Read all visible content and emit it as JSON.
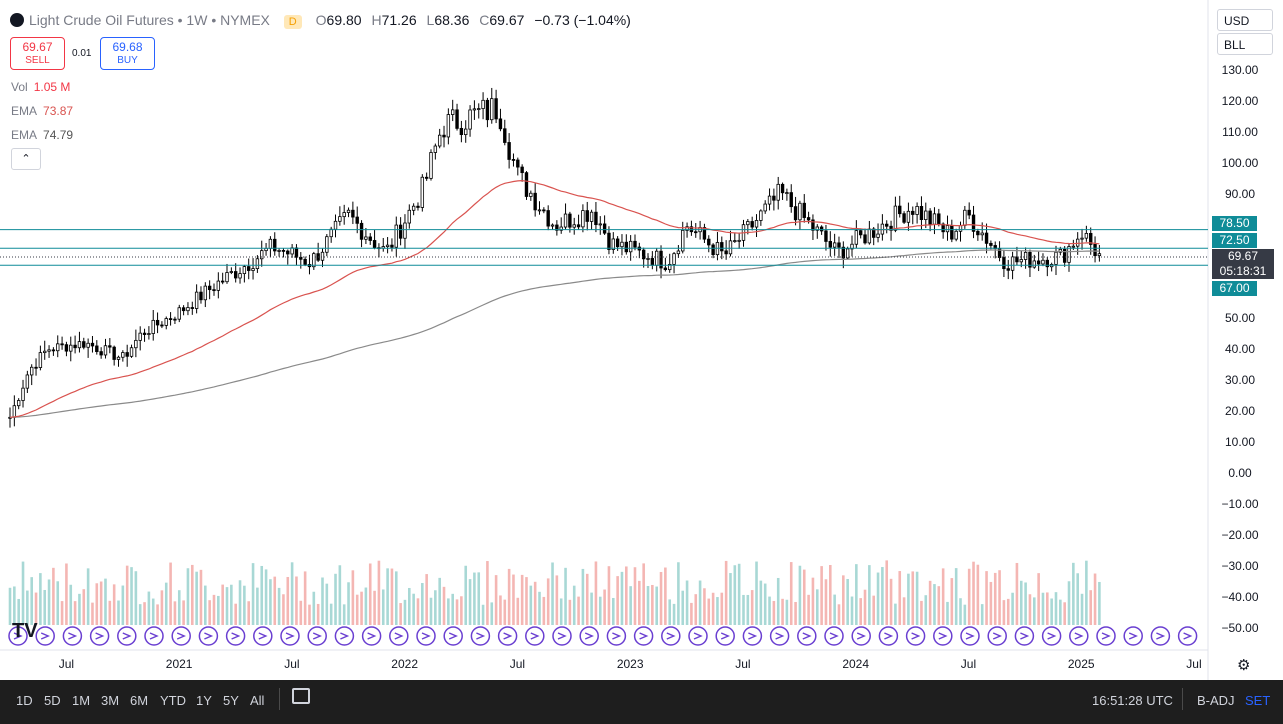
{
  "header": {
    "title": "Light Crude Oil Futures",
    "timeframe": "1W",
    "exchange": "NYMEX",
    "badge": "D",
    "o_label": "O",
    "o_val": "69.80",
    "h_label": "H",
    "h_val": "71.26",
    "l_label": "L",
    "l_val": "68.36",
    "c_label": "C",
    "c_val": "69.67",
    "change": "−0.73 (−1.04%)"
  },
  "trade": {
    "sell_price": "69.67",
    "sell_label": "SELL",
    "spread": "0.01",
    "buy_price": "69.68",
    "buy_label": "BUY"
  },
  "indicators": {
    "vol_label": "Vol",
    "vol_val": "1.05 M",
    "ema1_label": "EMA",
    "ema1_val": "73.87",
    "ema2_label": "EMA",
    "ema2_val": "74.79",
    "collapse_glyph": "⌃"
  },
  "selectors": {
    "currency": "USD",
    "unit": "BLL"
  },
  "price_axis": {
    "ticks": [
      "130.00",
      "120.00",
      "110.00",
      "100.00",
      "90.00",
      "50.00",
      "40.00",
      "30.00",
      "20.00",
      "10.00",
      "0.00",
      "−10.00",
      "−20.00",
      "−30.00",
      "−40.00",
      "−50.00"
    ]
  },
  "time_axis": {
    "labels": [
      "Jul",
      "2021",
      "Jul",
      "2022",
      "Jul",
      "2023",
      "Jul",
      "2024",
      "Jul",
      "2025",
      "Jul"
    ]
  },
  "levels": [
    {
      "value": "78.50",
      "color": "#0f8c98"
    },
    {
      "value": "72.50",
      "color": "#0f8c98"
    },
    {
      "value": "67.00",
      "color": "#0f8c98"
    }
  ],
  "current": {
    "price": "69.67",
    "countdown": "05:18:31"
  },
  "bottom": {
    "timeframes": [
      "1D",
      "5D",
      "1M",
      "3M",
      "6M",
      "YTD",
      "1Y",
      "5Y",
      "All"
    ],
    "clock": "16:51:28 UTC",
    "badj": "B-ADJ",
    "set": "SET"
  },
  "colors": {
    "up": "#000000",
    "down": "#000000",
    "ema_red": "#d9534f",
    "ema_gray": "#8a8a8a",
    "vol_up": "#a8d8d5",
    "vol_down": "#f4b6b3",
    "level": "#0f8c98"
  },
  "logo": "TV",
  "chart_data": {
    "type": "candlestick",
    "ylim": [
      -50,
      130
    ],
    "x_start": "2020-04",
    "x_end": "2025-02",
    "ohlc_anchors": [
      {
        "date": "2020-04",
        "close": 18
      },
      {
        "date": "2020-05",
        "close": 33
      },
      {
        "date": "2020-06",
        "close": 40
      },
      {
        "date": "2020-08",
        "close": 42
      },
      {
        "date": "2020-10",
        "close": 37
      },
      {
        "date": "2020-11",
        "close": 45
      },
      {
        "date": "2021-01",
        "close": 52
      },
      {
        "date": "2021-03",
        "close": 61
      },
      {
        "date": "2021-06",
        "close": 73
      },
      {
        "date": "2021-08",
        "close": 68
      },
      {
        "date": "2021-10",
        "close": 83
      },
      {
        "date": "2021-12",
        "close": 71
      },
      {
        "date": "2022-02",
        "close": 92
      },
      {
        "date": "2022-03",
        "close": 112
      },
      {
        "date": "2022-06",
        "close": 118
      },
      {
        "date": "2022-07",
        "close": 96
      },
      {
        "date": "2022-09",
        "close": 80
      },
      {
        "date": "2022-11",
        "close": 85
      },
      {
        "date": "2022-12",
        "close": 74
      },
      {
        "date": "2023-03",
        "close": 68
      },
      {
        "date": "2023-04",
        "close": 80
      },
      {
        "date": "2023-06",
        "close": 70
      },
      {
        "date": "2023-09",
        "close": 90
      },
      {
        "date": "2023-12",
        "close": 71
      },
      {
        "date": "2024-04",
        "close": 86
      },
      {
        "date": "2024-06",
        "close": 77
      },
      {
        "date": "2024-07",
        "close": 83
      },
      {
        "date": "2024-09",
        "close": 68
      },
      {
        "date": "2024-12",
        "close": 70
      },
      {
        "date": "2025-01",
        "close": 78
      },
      {
        "date": "2025-02",
        "close": 69.67
      }
    ],
    "ema_short_last": 73.87,
    "ema_long_last": 74.79,
    "levels": [
      78.5,
      72.5,
      67.0
    ],
    "last_price": 69.67
  }
}
